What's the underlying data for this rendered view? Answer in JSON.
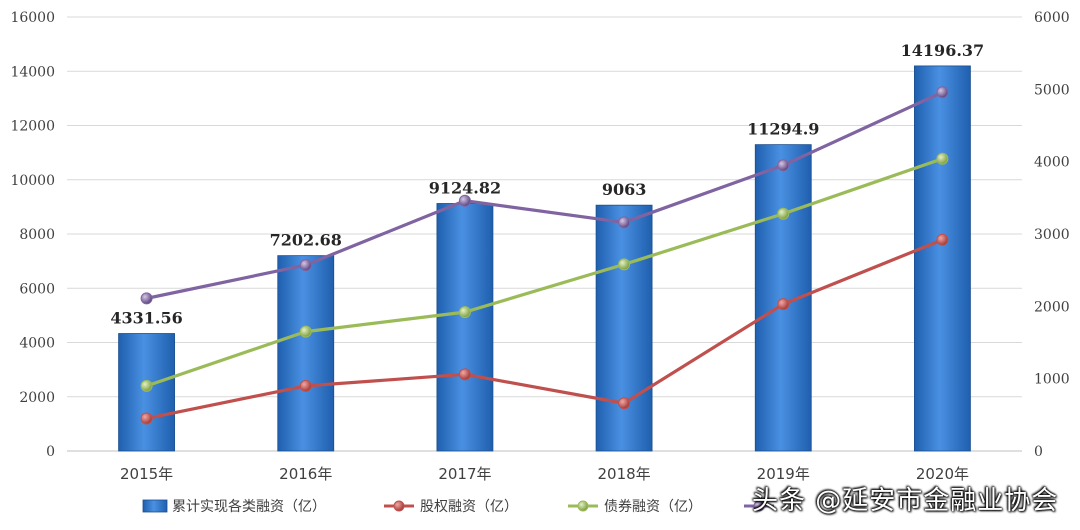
{
  "chart_data": {
    "type": "bar+line",
    "categories": [
      "2015年",
      "2016年",
      "2017年",
      "2018年",
      "2019年",
      "2020年"
    ],
    "bar_series": {
      "name": "累计实现各类融资（亿）",
      "values": [
        4331.56,
        7202.68,
        9124.82,
        9063,
        11294.9,
        14196.37
      ],
      "labels": [
        "4331.56",
        "7202.68",
        "9124.82",
        "9063",
        "11294.9",
        "14196.37"
      ],
      "axis": "left",
      "color": "#3b7fd0"
    },
    "line_series": [
      {
        "name": "股权融资（亿）",
        "values": [
          450,
          900,
          1060,
          660,
          2030,
          2920
        ],
        "axis": "right",
        "color": "#c0504d"
      },
      {
        "name": "债券融资（亿）",
        "values": [
          900,
          1650,
          1920,
          2580,
          3280,
          4040
        ],
        "axis": "right",
        "color": "#9bbb59"
      },
      {
        "name": "",
        "values": [
          2110,
          2570,
          3460,
          3160,
          3950,
          4960
        ],
        "axis": "right",
        "color": "#8064a2"
      }
    ],
    "left_axis": {
      "ylim": [
        0,
        16000
      ],
      "ticks": [
        "0",
        "2000",
        "4000",
        "6000",
        "8000",
        "10000",
        "12000",
        "14000",
        "16000"
      ]
    },
    "right_axis": {
      "ylim": [
        0,
        6000
      ],
      "ticks": [
        "0",
        "1000",
        "2000",
        "3000",
        "4000",
        "5000",
        "6000"
      ]
    },
    "grid": true,
    "legend_position": "bottom"
  },
  "watermark": "头条 @延安市金融业协会"
}
